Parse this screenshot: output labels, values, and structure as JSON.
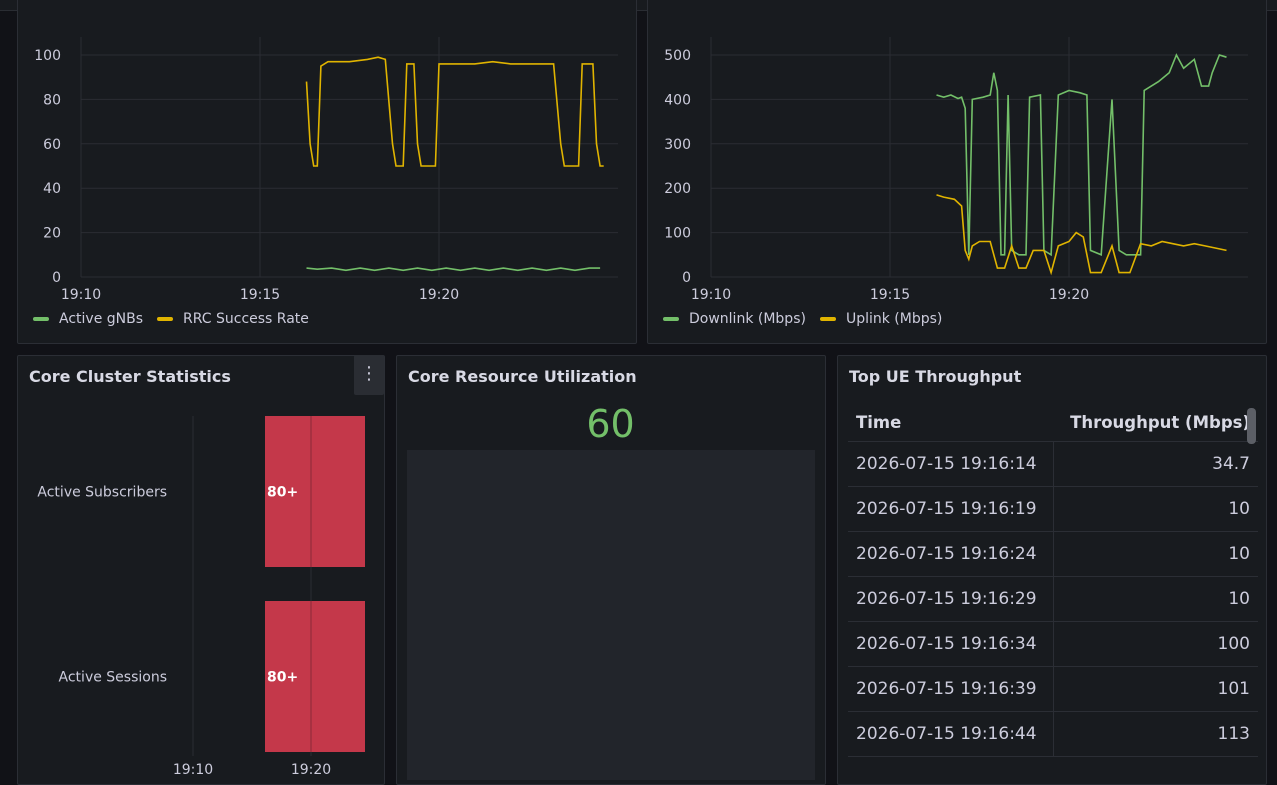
{
  "panels": {
    "ran": {
      "legend": [
        {
          "label": "Active gNBs",
          "color": "#73bf69"
        },
        {
          "label": "RRC Success Rate",
          "color": "#e0b400"
        }
      ]
    },
    "throughput": {
      "legend": [
        {
          "label": "Downlink (Mbps)",
          "color": "#73bf69"
        },
        {
          "label": "Uplink (Mbps)",
          "color": "#e0b400"
        }
      ]
    },
    "core_cluster": {
      "title": "Core Cluster Statistics",
      "menu_icon": "⋮"
    },
    "core_resource": {
      "title": "Core Resource Utilization",
      "value": "60"
    },
    "top_ue": {
      "title": "Top UE Throughput",
      "columns": [
        "Time",
        "Throughput (Mbps)"
      ],
      "rows": [
        [
          "2026-07-15 19:16:14",
          "34.7"
        ],
        [
          "2026-07-15 19:16:19",
          "10"
        ],
        [
          "2026-07-15 19:16:24",
          "10"
        ],
        [
          "2026-07-15 19:16:29",
          "10"
        ],
        [
          "2026-07-15 19:16:34",
          "100"
        ],
        [
          "2026-07-15 19:16:39",
          "101"
        ],
        [
          "2026-07-15 19:16:44",
          "113"
        ]
      ]
    }
  },
  "chart_data": [
    {
      "type": "line",
      "xticks": [
        "19:10",
        "19:15",
        "19:20"
      ],
      "yticks": [
        0,
        20,
        40,
        60,
        80,
        100
      ],
      "ylim": [
        0,
        100
      ],
      "x_minutes_range": [
        0,
        15
      ],
      "series": [
        {
          "name": "Active gNBs",
          "color": "#73bf69",
          "points": [
            [
              6.3,
              4
            ],
            [
              6.6,
              3.5
            ],
            [
              7,
              4
            ],
            [
              7.4,
              3
            ],
            [
              7.8,
              4
            ],
            [
              8.2,
              3
            ],
            [
              8.6,
              4
            ],
            [
              9,
              3
            ],
            [
              9.4,
              4
            ],
            [
              9.8,
              3
            ],
            [
              10.2,
              4
            ],
            [
              10.6,
              3
            ],
            [
              11,
              4
            ],
            [
              11.4,
              3
            ],
            [
              11.8,
              4
            ],
            [
              12.2,
              3
            ],
            [
              12.6,
              4
            ],
            [
              13,
              3
            ],
            [
              13.4,
              4
            ],
            [
              13.8,
              3
            ],
            [
              14.2,
              4
            ],
            [
              14.5,
              4
            ]
          ]
        },
        {
          "name": "RRC Success Rate",
          "color": "#e0b400",
          "points": [
            [
              6.3,
              88
            ],
            [
              6.4,
              60
            ],
            [
              6.5,
              50
            ],
            [
              6.6,
              50
            ],
            [
              6.7,
              95
            ],
            [
              6.9,
              97
            ],
            [
              7.5,
              97
            ],
            [
              8,
              98
            ],
            [
              8.3,
              99
            ],
            [
              8.5,
              98
            ],
            [
              8.7,
              60
            ],
            [
              8.8,
              50
            ],
            [
              9,
              50
            ],
            [
              9.1,
              96
            ],
            [
              9.3,
              96
            ],
            [
              9.4,
              60
            ],
            [
              9.5,
              50
            ],
            [
              9.9,
              50
            ],
            [
              10,
              96
            ],
            [
              10.5,
              96
            ],
            [
              11,
              96
            ],
            [
              11.5,
              97
            ],
            [
              12,
              96
            ],
            [
              12.5,
              96
            ],
            [
              13.2,
              96
            ],
            [
              13.4,
              60
            ],
            [
              13.5,
              50
            ],
            [
              13.9,
              50
            ],
            [
              14,
              96
            ],
            [
              14.3,
              96
            ],
            [
              14.4,
              60
            ],
            [
              14.5,
              50
            ],
            [
              14.6,
              50
            ]
          ]
        }
      ]
    },
    {
      "type": "line",
      "xticks": [
        "19:10",
        "19:15",
        "19:20"
      ],
      "yticks": [
        0,
        100,
        200,
        300,
        400,
        500
      ],
      "ylim": [
        0,
        500
      ],
      "x_minutes_range": [
        0,
        15
      ],
      "series": [
        {
          "name": "Downlink (Mbps)",
          "color": "#73bf69",
          "points": [
            [
              6.3,
              410
            ],
            [
              6.5,
              405
            ],
            [
              6.7,
              410
            ],
            [
              6.9,
              402
            ],
            [
              7,
              405
            ],
            [
              7.1,
              380
            ],
            [
              7.2,
              50
            ],
            [
              7.3,
              400
            ],
            [
              7.6,
              405
            ],
            [
              7.8,
              410
            ],
            [
              7.9,
              460
            ],
            [
              8,
              420
            ],
            [
              8.1,
              50
            ],
            [
              8.2,
              50
            ],
            [
              8.3,
              410
            ],
            [
              8.4,
              60
            ],
            [
              8.6,
              50
            ],
            [
              8.8,
              50
            ],
            [
              8.9,
              405
            ],
            [
              9.2,
              410
            ],
            [
              9.3,
              60
            ],
            [
              9.5,
              50
            ],
            [
              9.7,
              410
            ],
            [
              10,
              420
            ],
            [
              10.3,
              415
            ],
            [
              10.5,
              410
            ],
            [
              10.6,
              60
            ],
            [
              10.9,
              50
            ],
            [
              11.2,
              400
            ],
            [
              11.4,
              60
            ],
            [
              11.6,
              50
            ],
            [
              12,
              50
            ],
            [
              12.1,
              420
            ],
            [
              12.5,
              440
            ],
            [
              12.8,
              460
            ],
            [
              13,
              500
            ],
            [
              13.2,
              470
            ],
            [
              13.5,
              490
            ],
            [
              13.7,
              430
            ],
            [
              13.9,
              430
            ],
            [
              14,
              460
            ],
            [
              14.2,
              500
            ],
            [
              14.4,
              495
            ]
          ]
        },
        {
          "name": "Uplink (Mbps)",
          "color": "#e0b400",
          "points": [
            [
              6.3,
              185
            ],
            [
              6.5,
              180
            ],
            [
              6.8,
              175
            ],
            [
              7,
              160
            ],
            [
              7.1,
              60
            ],
            [
              7.2,
              40
            ],
            [
              7.3,
              70
            ],
            [
              7.5,
              80
            ],
            [
              7.8,
              80
            ],
            [
              8,
              20
            ],
            [
              8.2,
              20
            ],
            [
              8.4,
              70
            ],
            [
              8.6,
              20
            ],
            [
              8.8,
              20
            ],
            [
              9,
              60
            ],
            [
              9.3,
              60
            ],
            [
              9.5,
              10
            ],
            [
              9.7,
              70
            ],
            [
              10,
              80
            ],
            [
              10.2,
              100
            ],
            [
              10.4,
              90
            ],
            [
              10.6,
              10
            ],
            [
              10.9,
              10
            ],
            [
              11.2,
              70
            ],
            [
              11.4,
              10
            ],
            [
              11.7,
              10
            ],
            [
              12,
              75
            ],
            [
              12.3,
              70
            ],
            [
              12.6,
              80
            ],
            [
              12.9,
              75
            ],
            [
              13.2,
              70
            ],
            [
              13.5,
              75
            ],
            [
              13.8,
              70
            ],
            [
              14.1,
              65
            ],
            [
              14.4,
              60
            ]
          ]
        }
      ]
    },
    {
      "type": "bar",
      "orientation": "horizontal",
      "categories": [
        "Active Subscribers",
        "Active Sessions"
      ],
      "value_labels": [
        "80+",
        "80+"
      ],
      "xticks": [
        "19:10",
        "19:20"
      ],
      "color": "#c4384a"
    }
  ]
}
